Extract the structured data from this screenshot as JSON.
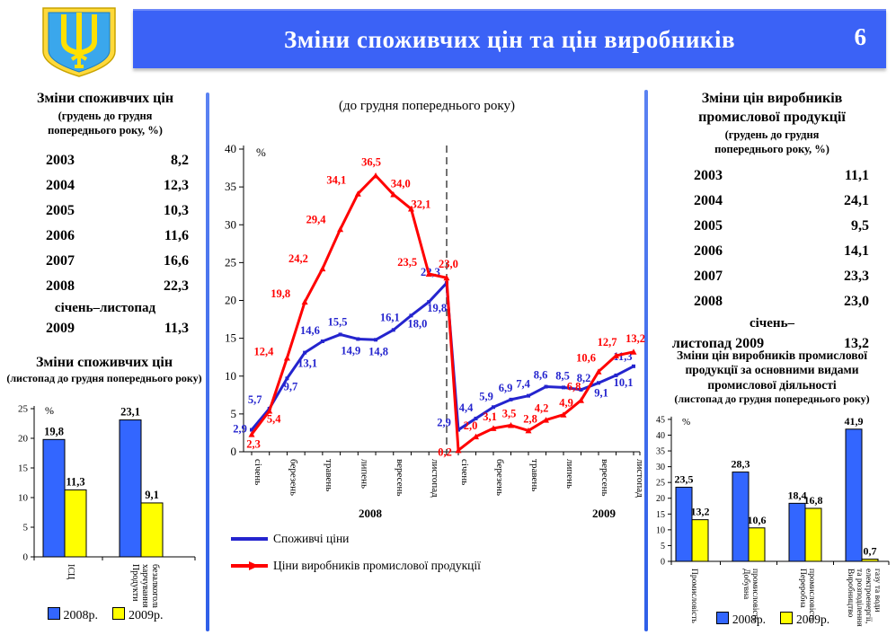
{
  "header": {
    "title": "Зміни споживчих цін та цін виробників",
    "page": "6",
    "emblem": "coat-of-arms-ukraine"
  },
  "colors": {
    "header_blue": "#3B62F6",
    "divider_blue": "#3E6BE8",
    "bar_2008_blue": "#3366FF",
    "bar_2009_yellow": "#FFFF00",
    "consumer_line_blue": "#2424CE",
    "producer_line_red": "#FF0000",
    "emblem_shield_blue": "#3AA7EC",
    "emblem_gold": "#FFD500"
  },
  "cpi_table": {
    "title": "Зміни споживчих цін",
    "subtitle_line1": "(грудень до грудня",
    "subtitle_line2": "попереднього року, %)",
    "rows": [
      [
        "2003",
        "8,2"
      ],
      [
        "2004",
        "12,3"
      ],
      [
        "2005",
        "10,3"
      ],
      [
        "2006",
        "11,6"
      ],
      [
        "2007",
        "16,6"
      ],
      [
        "2008",
        "22,3"
      ]
    ],
    "final_label": "січень–листопад",
    "final_year": "2009",
    "final_value": "11,3"
  },
  "ppi_table": {
    "title_line1": "Зміни цін виробників",
    "title_line2": "промислової продукції",
    "subtitle_line1": "(грудень до грудня",
    "subtitle_line2": "попереднього року, %)",
    "rows": [
      [
        "2003",
        "11,1"
      ],
      [
        "2004",
        "24,1"
      ],
      [
        "2005",
        "9,5"
      ],
      [
        "2006",
        "14,1"
      ],
      [
        "2007",
        "23,3"
      ],
      [
        "2008",
        "23,0"
      ]
    ],
    "final_label": "січень–",
    "final_year": "листопад 2009",
    "final_value": "13,2"
  },
  "chart_data": [
    {
      "id": "cpi-bars",
      "type": "bar",
      "title": "Зміни споживчих цін",
      "subtitle": "(листопад до грудня попереднього року)",
      "ylabel": "%",
      "ylim": [
        0,
        25
      ],
      "ytick_step": 5,
      "categories": [
        "ІСЦ",
        "Продукти харчування та безалкогольні напої"
      ],
      "category_lines": [
        [
          "ІСЦ"
        ],
        [
          "Продукти",
          "харчування та",
          "безалкогольні напої"
        ]
      ],
      "series": [
        {
          "name": "2008р.",
          "color": "#3366FF",
          "values": [
            19.8,
            23.1
          ]
        },
        {
          "name": "2009р.",
          "color": "#FFFF00",
          "values": [
            11.3,
            9.1
          ]
        }
      ],
      "legend_position": "bottom"
    },
    {
      "id": "price-lines",
      "type": "line",
      "title": "(до грудня попереднього року)",
      "ylabel": "%",
      "ylim": [
        0,
        40
      ],
      "ytick_step": 5,
      "x_groups": [
        {
          "year": "2008",
          "months": 12
        },
        {
          "year": "2009",
          "months": 11
        }
      ],
      "month_tick_labels": [
        "січень",
        "березень",
        "травень",
        "липень",
        "вересень",
        "листопад"
      ],
      "divider_between_years": true,
      "series": [
        {
          "name": "Споживчі ціни",
          "color": "#2424CE",
          "values_2008": [
            2.9,
            5.7,
            9.7,
            13.1,
            14.6,
            15.5,
            14.9,
            14.8,
            16.1,
            18.0,
            19.8,
            22.3
          ],
          "values_2009": [
            2.9,
            4.4,
            5.9,
            6.9,
            7.4,
            8.6,
            8.5,
            8.2,
            9.1,
            10.1,
            11.3
          ]
        },
        {
          "name": "Ціни виробників промислової продукції",
          "color": "#FF0000",
          "values_2008": [
            2.3,
            5.4,
            12.4,
            19.8,
            24.2,
            29.4,
            34.1,
            36.5,
            34.0,
            32.1,
            23.5,
            23.0
          ],
          "values_2009": [
            0.2,
            2.0,
            3.1,
            3.5,
            2.8,
            4.2,
            4.9,
            6.8,
            10.6,
            12.7,
            13.2
          ]
        }
      ],
      "legend_position": "bottom-left"
    },
    {
      "id": "ppi-bars",
      "type": "bar",
      "title": "Зміни цін виробників промислової продукції за основними видами промислової діяльності",
      "title_lines": [
        "Зміни цін виробників промислової",
        "продукції за основними видами",
        "промислової діяльності"
      ],
      "subtitle": "(листопад до грудня попереднього року)",
      "ylabel": "%",
      "ylim": [
        0,
        45
      ],
      "ytick_step": 5,
      "categories": [
        "Промисловість",
        "Добувна промисловість",
        "Переробна промисловість",
        "Виробництво та розподілення електроенергії, газу та води"
      ],
      "category_lines": [
        [
          "Промисловість"
        ],
        [
          "Добувна",
          "промисловість"
        ],
        [
          "Переробна",
          "промисловість"
        ],
        [
          "Виробництво",
          "та розподілення",
          "електроенергії,",
          "газу та води"
        ]
      ],
      "series": [
        {
          "name": "2008р.",
          "color": "#3366FF",
          "values": [
            23.5,
            28.3,
            18.4,
            41.9
          ]
        },
        {
          "name": "2009р.",
          "color": "#FFFF00",
          "values": [
            13.2,
            10.6,
            16.8,
            0.7
          ]
        }
      ],
      "legend_position": "bottom"
    }
  ]
}
